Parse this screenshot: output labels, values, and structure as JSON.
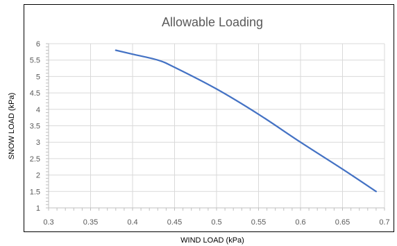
{
  "chart_data": {
    "type": "line",
    "title": "Allowable Loading",
    "xlabel": "WIND LOAD (kPa)",
    "ylabel": "SNOW LOAD (kPa)",
    "xlim": [
      0.3,
      0.7
    ],
    "ylim": [
      1,
      6
    ],
    "xticks": [
      "0.3",
      "0.35",
      "0.4",
      "0.45",
      "0.5",
      "0.55",
      "0.6",
      "0.65",
      "0.7"
    ],
    "yticks": [
      "1",
      "1.5",
      "2",
      "2.5",
      "3",
      "3.5",
      "4",
      "4.5",
      "5",
      "5.5",
      "6"
    ],
    "grid": true,
    "legend": "none",
    "series": [
      {
        "color": "#4472c4",
        "x": [
          0.38,
          0.4,
          0.43,
          0.45,
          0.5,
          0.55,
          0.6,
          0.65,
          0.69
        ],
        "y": [
          5.8,
          5.68,
          5.5,
          5.28,
          4.62,
          3.85,
          3.0,
          2.18,
          1.5
        ]
      }
    ]
  },
  "colors": {
    "line": "#4472c4",
    "grid": "#d9d9d9",
    "frame": "#000000",
    "text": "#595959"
  }
}
